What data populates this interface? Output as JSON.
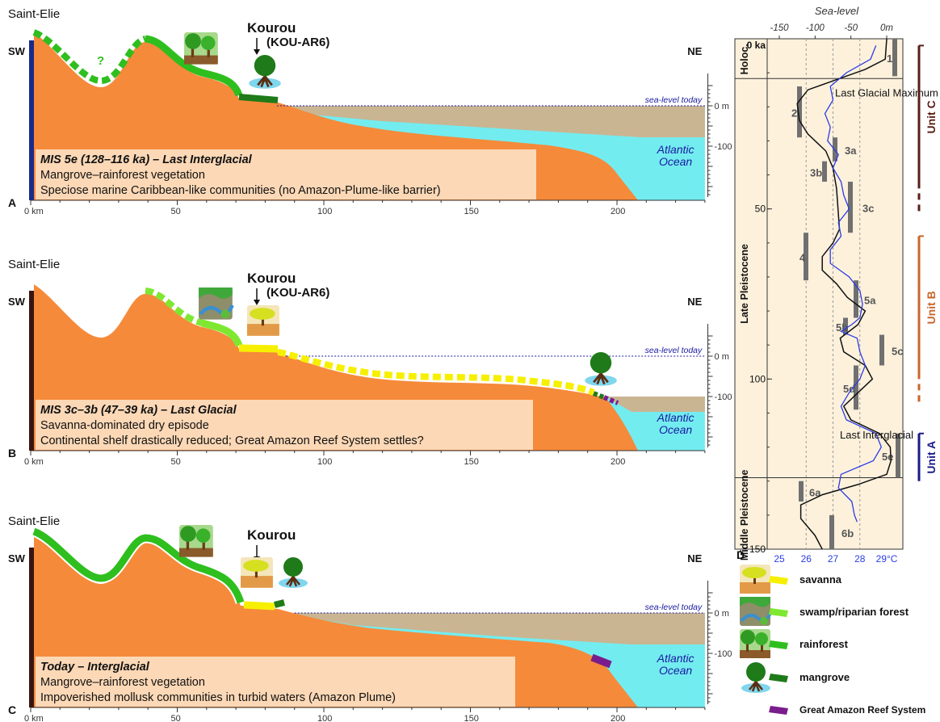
{
  "scale_km": [
    "0 km",
    "50",
    "100",
    "150",
    "200"
  ],
  "depth_ticks": [
    "0 m",
    "-100"
  ],
  "sea_level_today": "sea-level today",
  "ocean_label": [
    "Atlantic",
    "Ocean"
  ],
  "sw": "SW",
  "ne": "NE",
  "panels": [
    {
      "letter": "A",
      "place": "Saint-Elie",
      "site": "Kourou",
      "site_code": "(KOU-AR6)",
      "question_mark": "?",
      "title": "MIS 5e (128–116 ka) – Last Interglacial",
      "lines": [
        "Mangrove–rainforest vegetation",
        "Speciose marine Caribbean-like communities (no Amazon-Plume-like barrier)"
      ]
    },
    {
      "letter": "B",
      "place": "Saint-Elie",
      "site": "Kourou",
      "site_code": "(KOU-AR6)",
      "title": "MIS 3c–3b (47–39 ka) – Last Glacial",
      "lines": [
        "Savanna-dominated dry episode",
        "Continental shelf drastically reduced; Great Amazon Reef System settles?"
      ]
    },
    {
      "letter": "C",
      "place": "Saint-Elie",
      "site": "Kourou",
      "title": "Today – Interglacial",
      "lines": [
        "Mangrove–rainforest vegetation",
        "Impoverished mollusk communities in turbid waters (Amazon Plume)"
      ]
    }
  ],
  "panel_d": {
    "letter": "D",
    "top_axis_title": "Sea-level",
    "top_ticks": [
      "-150",
      "-100",
      "-50",
      "0m"
    ],
    "bottom_ticks": [
      "25",
      "26",
      "27",
      "28",
      "29°C"
    ],
    "age_ticks": [
      "0 ka",
      "50",
      "100",
      "150"
    ],
    "epochs": [
      "Holoc.",
      "Late Pleistocene",
      "Middle Pleistocene"
    ],
    "stages": [
      "1",
      "2",
      "3a",
      "3b",
      "3c",
      "4",
      "5a",
      "5b",
      "5c",
      "5d",
      "5e",
      "6a",
      "6b"
    ],
    "annotations": [
      "Last Glacial Maximum",
      "Last Interglacial"
    ],
    "units": [
      "Unit C",
      "Unit B",
      "Unit A"
    ],
    "colors": {
      "unit_c": "#5a1e14",
      "unit_b": "#c8662a",
      "unit_a": "#1a1a8a",
      "sst": "#2b3ce6",
      "sea_level_curve": "#111111"
    }
  },
  "legend": [
    {
      "label": "savanna",
      "color": "#f6f000",
      "icon": "savanna-icon"
    },
    {
      "label": "swamp/riparian forest",
      "color": "#7ee830",
      "icon": "swamp-forest-icon"
    },
    {
      "label": "rainforest",
      "color": "#2ebf1e",
      "icon": "rainforest-icon"
    },
    {
      "label": "mangrove",
      "color": "#1f7a1a",
      "icon": "mangrove-icon"
    },
    {
      "label": "Great Amazon Reef System",
      "color": "#7a1d8c",
      "icon": "reef-icon"
    }
  ],
  "colors": {
    "land": "#f58a3a",
    "ocean": "#73ecf0",
    "shelf": "#c9b592",
    "left_bar_a": "#1a2a8a",
    "left_bar_bc": "#3a1410",
    "text_box": "#fcd8b6",
    "sea_level_line": "#1a1aa0"
  }
}
